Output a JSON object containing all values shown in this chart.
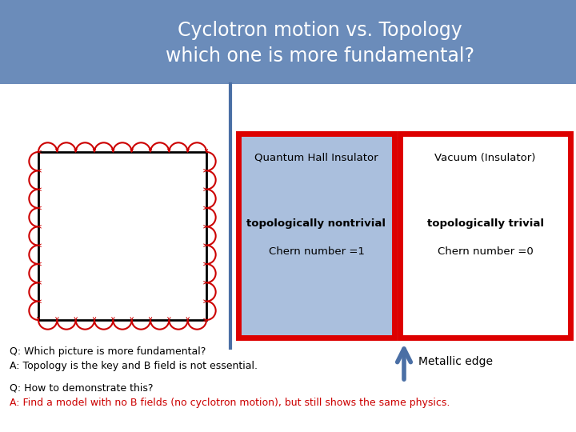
{
  "title_line1": "Cyclotron motion vs. Topology",
  "title_line2": "which one is more fundamental?",
  "title_bg_color": "#6b8cba",
  "title_text_color": "#ffffff",
  "left_box_border_color": "#000000",
  "cyclotron_color": "#cc0000",
  "qhi_box_bg": "#aabfdd",
  "qhi_box_border": "#dd0000",
  "vacuum_box_bg": "#ffffff",
  "vacuum_box_border": "#dd0000",
  "divider_color": "#4a6fa5",
  "qhi_label": "Quantum Hall Insulator",
  "qhi_sub1": "topologically nontrivial",
  "qhi_sub2": "Chern number =1",
  "vac_label": "Vacuum (Insulator)",
  "vac_sub1": "topologically trivial",
  "vac_sub2": "Chern number =0",
  "q1": "Q: Which picture is more fundamental?",
  "a1": "A: Topology is the key and B field is not essential.",
  "q2": "Q: How to demonstrate this?",
  "a2": "A: Find a model with no B fields (no cyclotron motion), but still shows the same physics.",
  "metallic_edge": "Metallic edge",
  "arrow_color": "#4a6fa5",
  "q2_color": "#000000",
  "a2_color": "#cc0000"
}
